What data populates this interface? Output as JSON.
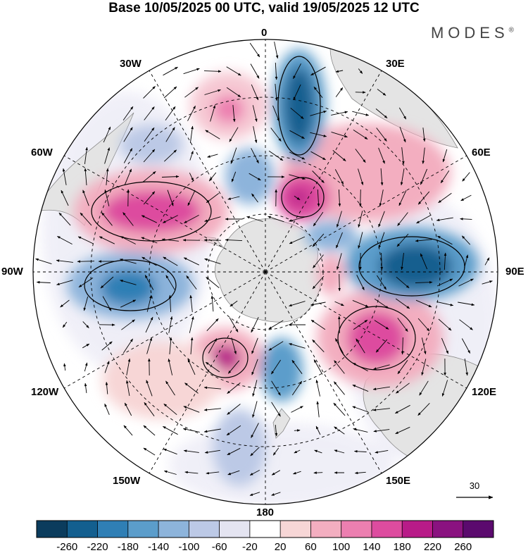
{
  "title": "Base 10/05/2025 00 UTC, valid 19/05/2025 12 UTC",
  "brand": "MODES",
  "brand_mark": "®",
  "longitude_labels": {
    "top": "0",
    "top_right": "30E",
    "right_upper": "60E",
    "right": "90E",
    "right_lower": "120E",
    "bottom_right": "150E",
    "bottom": "180",
    "bottom_left": "150W",
    "left_lower": "120W",
    "left": "90W",
    "left_upper": "60W",
    "top_left": "30W"
  },
  "vector_scale_label": "30",
  "colorbar": {
    "ticks": [
      "-260",
      "-220",
      "-180",
      "-140",
      "-100",
      "-60",
      "-20",
      "20",
      "60",
      "100",
      "140",
      "180",
      "220",
      "260"
    ],
    "colors": [
      "#0b3c5d",
      "#135f8f",
      "#2f7fb5",
      "#5b9dcb",
      "#8db4db",
      "#bcc9e6",
      "#e4e4f1",
      "#ffffff",
      "#f7d6d6",
      "#f3aec0",
      "#ec7fb0",
      "#dd4c9f",
      "#b81b88",
      "#8a1280",
      "#5b0a6e"
    ]
  }
}
